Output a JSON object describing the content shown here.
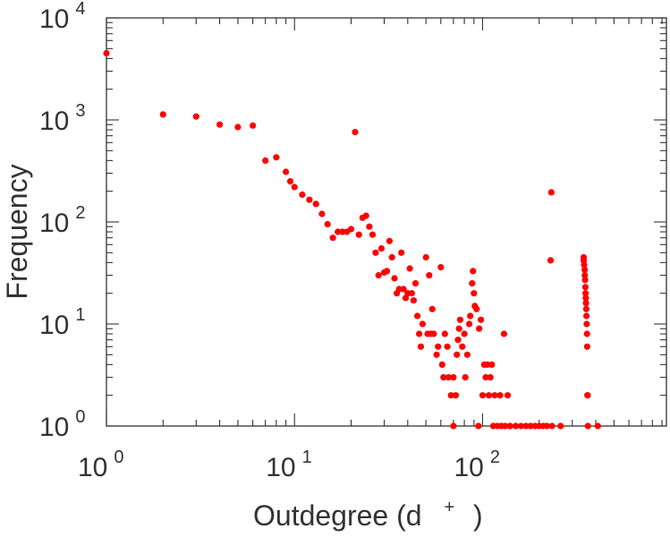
{
  "chart_data": {
    "type": "scatter",
    "title": "",
    "xlabel": "Outdegree (d",
    "xlabel_superscript": "+",
    "xlabel_suffix": ")",
    "ylabel": "Frequency",
    "xscale": "log",
    "yscale": "log",
    "xlim": [
      1,
      950
    ],
    "ylim": [
      1,
      10000
    ],
    "grid": false,
    "x_ticks": [
      {
        "base": "10",
        "exp": "0",
        "value": 1
      },
      {
        "base": "10",
        "exp": "1",
        "value": 10
      },
      {
        "base": "10",
        "exp": "2",
        "value": 100
      }
    ],
    "y_ticks": [
      {
        "base": "10",
        "exp": "0",
        "value": 1
      },
      {
        "base": "10",
        "exp": "1",
        "value": 10
      },
      {
        "base": "10",
        "exp": "2",
        "value": 100
      },
      {
        "base": "10",
        "exp": "3",
        "value": 1000
      },
      {
        "base": "10",
        "exp": "4",
        "value": 10000
      }
    ],
    "color": "#ff0000",
    "points": [
      [
        1,
        4500
      ],
      [
        2,
        1130
      ],
      [
        3,
        1080
      ],
      [
        4,
        900
      ],
      [
        5,
        850
      ],
      [
        6,
        880
      ],
      [
        7,
        400
      ],
      [
        8,
        430
      ],
      [
        9,
        310
      ],
      [
        9.5,
        250
      ],
      [
        10,
        220
      ],
      [
        11,
        185
      ],
      [
        12,
        165
      ],
      [
        13,
        150
      ],
      [
        14,
        120
      ],
      [
        15,
        95
      ],
      [
        16,
        70
      ],
      [
        17,
        80
      ],
      [
        18,
        80
      ],
      [
        19,
        80
      ],
      [
        20,
        85
      ],
      [
        21,
        760
      ],
      [
        22,
        75
      ],
      [
        23,
        110
      ],
      [
        24,
        115
      ],
      [
        25,
        90
      ],
      [
        26,
        75
      ],
      [
        27,
        50
      ],
      [
        28,
        30
      ],
      [
        29,
        55
      ],
      [
        30,
        32
      ],
      [
        31,
        33
      ],
      [
        32,
        65
      ],
      [
        33,
        45
      ],
      [
        34,
        28
      ],
      [
        35,
        20
      ],
      [
        36,
        22
      ],
      [
        37,
        50
      ],
      [
        38,
        22
      ],
      [
        39,
        18
      ],
      [
        40,
        20
      ],
      [
        41,
        35
      ],
      [
        42,
        20
      ],
      [
        43,
        17
      ],
      [
        44,
        25
      ],
      [
        45,
        12
      ],
      [
        46,
        8
      ],
      [
        47,
        6
      ],
      [
        48,
        10
      ],
      [
        50,
        45
      ],
      [
        51,
        8
      ],
      [
        52,
        30
      ],
      [
        53,
        8
      ],
      [
        54,
        14
      ],
      [
        55,
        8
      ],
      [
        57,
        5
      ],
      [
        58,
        6
      ],
      [
        60,
        36
      ],
      [
        61,
        4
      ],
      [
        62,
        3
      ],
      [
        63,
        8
      ],
      [
        65,
        6
      ],
      [
        66,
        3
      ],
      [
        68,
        2
      ],
      [
        70,
        3
      ],
      [
        70,
        1
      ],
      [
        72,
        2
      ],
      [
        73,
        5
      ],
      [
        74,
        7
      ],
      [
        75,
        9
      ],
      [
        76,
        11
      ],
      [
        78,
        6
      ],
      [
        80,
        8
      ],
      [
        81,
        3
      ],
      [
        83,
        5
      ],
      [
        85,
        10
      ],
      [
        86,
        12
      ],
      [
        88,
        25
      ],
      [
        89,
        33
      ],
      [
        90,
        20
      ],
      [
        91,
        15
      ],
      [
        93,
        14
      ],
      [
        95,
        1
      ],
      [
        96,
        9
      ],
      [
        98,
        11
      ],
      [
        100,
        2
      ],
      [
        102,
        4
      ],
      [
        104,
        3
      ],
      [
        106,
        4
      ],
      [
        108,
        2
      ],
      [
        110,
        3
      ],
      [
        112,
        4
      ],
      [
        114,
        1
      ],
      [
        116,
        2
      ],
      [
        120,
        1
      ],
      [
        124,
        2
      ],
      [
        126,
        1
      ],
      [
        130,
        8
      ],
      [
        132,
        1
      ],
      [
        136,
        2
      ],
      [
        140,
        1
      ],
      [
        150,
        1
      ],
      [
        160,
        1
      ],
      [
        170,
        1
      ],
      [
        180,
        1
      ],
      [
        190,
        1
      ],
      [
        200,
        1
      ],
      [
        210,
        1
      ],
      [
        220,
        1
      ],
      [
        230,
        42
      ],
      [
        232,
        195
      ],
      [
        234,
        1
      ],
      [
        260,
        1
      ],
      [
        345,
        45
      ],
      [
        345,
        42
      ],
      [
        347,
        38
      ],
      [
        349,
        34
      ],
      [
        350,
        30
      ],
      [
        351,
        27
      ],
      [
        352,
        23
      ],
      [
        353,
        20
      ],
      [
        354,
        18
      ],
      [
        355,
        16
      ],
      [
        356,
        14
      ],
      [
        357,
        12
      ],
      [
        358,
        10
      ],
      [
        359,
        8
      ],
      [
        360,
        6
      ],
      [
        361,
        2
      ],
      [
        362,
        2
      ],
      [
        363,
        1
      ],
      [
        410,
        1
      ]
    ]
  }
}
